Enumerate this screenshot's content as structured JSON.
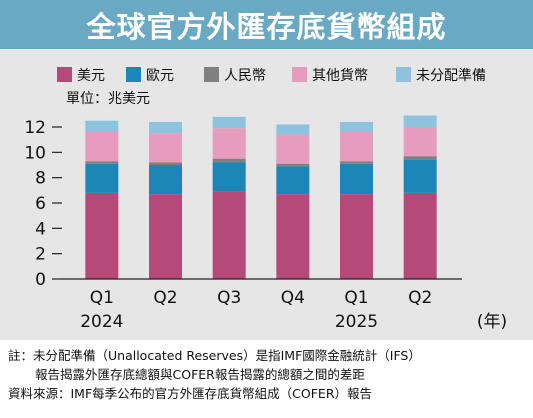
{
  "title": "全球官方外匯存底貨幣組成",
  "unit_label": "單位：兆美元",
  "colors": {
    "title_bar": "#6aa9c4",
    "panel": "#e6e6e6"
  },
  "chart_data": {
    "type": "bar",
    "stacked": true,
    "categories": [
      "Q1",
      "Q2",
      "Q3",
      "Q4",
      "Q1",
      "Q2"
    ],
    "year_labels": [
      {
        "label": "2024",
        "category_index": 0
      },
      {
        "label": "2025",
        "category_index": 4
      }
    ],
    "x_unit": "(年)",
    "ylim": [
      0,
      12
    ],
    "yticks": [
      0,
      2,
      4,
      6,
      8,
      10,
      12
    ],
    "legend_position": "top",
    "series": [
      {
        "name": "美元",
        "color": "#b5497a",
        "values": [
          6.8,
          6.7,
          6.9,
          6.7,
          6.7,
          6.8
        ]
      },
      {
        "name": "歐元",
        "color": "#1c86b7",
        "values": [
          2.3,
          2.3,
          2.3,
          2.2,
          2.4,
          2.6
        ]
      },
      {
        "name": "人民幣",
        "color": "#808080",
        "values": [
          0.2,
          0.2,
          0.3,
          0.2,
          0.2,
          0.3
        ]
      },
      {
        "name": "其他貨幣",
        "color": "#e79bbd",
        "values": [
          2.3,
          2.3,
          2.4,
          2.3,
          2.3,
          2.3
        ]
      },
      {
        "name": "未分配準備",
        "color": "#8ec3df",
        "values": [
          0.9,
          0.9,
          0.9,
          0.8,
          0.8,
          0.9
        ]
      }
    ]
  },
  "notes": {
    "note_line1": "註：未分配準備（Unallocated Reserves）是指IMF國際金融統計（IFS）",
    "note_line2": "報告揭露外匯存底總額與COFER報告揭露的總額之間的差距",
    "source": "資料來源：IMF每季公布的官方外匯存底貨幣組成（COFER）報告"
  }
}
